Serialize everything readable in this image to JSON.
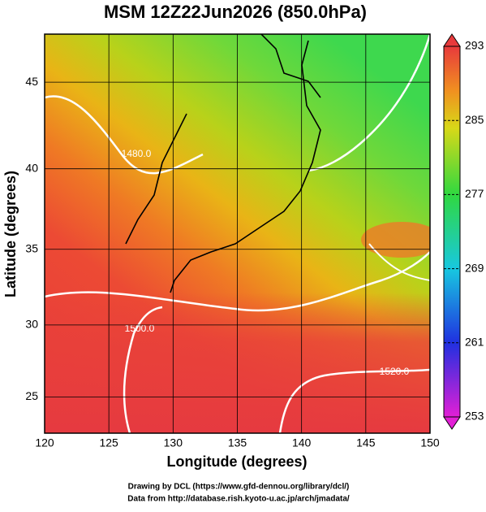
{
  "title": "MSM 12Z22Jun2026 (850.0hPa)",
  "x_label": "Longitude (degrees)",
  "y_label": "Latitude  (degrees)",
  "map": {
    "xlim": [
      120,
      150
    ],
    "ylim": [
      22.4,
      47.6
    ],
    "xticks": [
      120,
      125,
      130,
      135,
      140,
      145,
      150
    ],
    "yticks": [
      25,
      30,
      35,
      40,
      45
    ],
    "contour_labels": [
      "1480.0",
      "1500.0",
      "1520.0"
    ]
  },
  "colorbar": {
    "lim": [
      253,
      293
    ],
    "ticks": [
      253,
      261,
      269,
      277,
      285,
      293
    ]
  },
  "footer": [
    "Drawing by DCL (https://www.gfd-dennou.org/library/dcl/)",
    "Data from http://database.rish.kyoto-u.ac.jp/arch/jmadata/"
  ]
}
